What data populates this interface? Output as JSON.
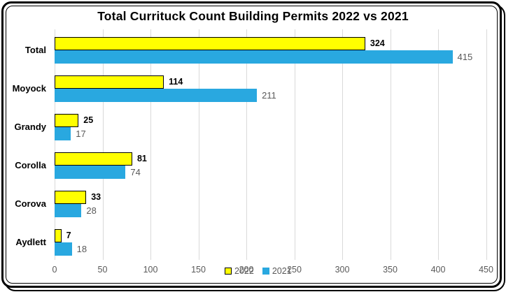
{
  "title": "Total Currituck Count Building Permits 2022 vs 2021",
  "chart_data": {
    "type": "bar",
    "orientation": "horizontal",
    "title": "Total Currituck Count Building Permits 2022 vs 2021",
    "categories": [
      "Total",
      "Moyock",
      "Grandy",
      "Corolla",
      "Corova",
      "Aydlett"
    ],
    "series": [
      {
        "name": "2022",
        "color": "#ffff00",
        "border_color": "#000000",
        "values": [
          324,
          114,
          25,
          81,
          33,
          7
        ]
      },
      {
        "name": "2021",
        "color": "#29a8e0",
        "border_color": "none",
        "values": [
          415,
          211,
          17,
          74,
          28,
          18
        ]
      }
    ],
    "xlim": [
      0,
      450
    ],
    "xticks": [
      0,
      50,
      100,
      150,
      200,
      250,
      300,
      350,
      400,
      450
    ],
    "grid": true,
    "legend_position": "bottom, overlapping the 200 axis label"
  },
  "legend": {
    "items": [
      {
        "label": "2022",
        "color": "#ffff00"
      },
      {
        "label": "2021",
        "color": "#29a8e0"
      }
    ]
  },
  "colors": {
    "background": "#ffffff",
    "frame_border": "#000000",
    "gridline": "#d9d9d9",
    "tick_label": "#595959",
    "title": "#000000",
    "label_2022": "#000000",
    "label_2021": "#595959"
  }
}
